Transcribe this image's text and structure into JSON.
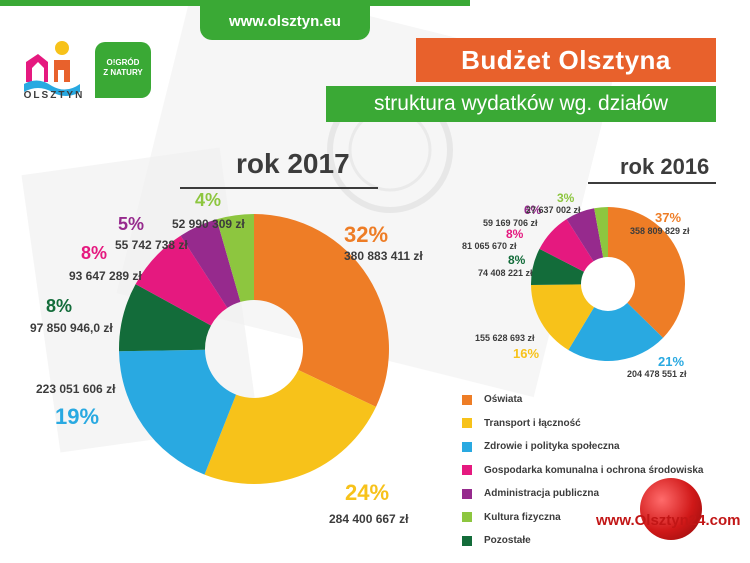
{
  "header": {
    "url": "www.olsztyn.eu",
    "logo_text": "OLSZTYN",
    "ogrod_line1": "O!GRÓD",
    "ogrod_line2": "Z NATURY",
    "title": "Budżet Olsztyna",
    "subtitle": "struktura wydatków wg. działów"
  },
  "watermark": "www.Olsztyn24.com",
  "colors": {
    "Oświata": "#ee7d26",
    "Transport i łączność": "#f7c21a",
    "Zdrowie i polityka społeczna": "#29a9e1",
    "Gospodarka komunalna i ochrona środowiska": "#e5197f",
    "Administracja publiczna": "#962a8d",
    "Kultura fizyczna": "#8dc63f",
    "Pozostałe": "#136c3a"
  },
  "chart_data": [
    {
      "type": "pie",
      "title": "rok 2017",
      "categories": [
        "Oświata",
        "Transport i łączność",
        "Zdrowie i polityka społeczna",
        "Pozostałe",
        "Gospodarka komunalna i ochrona środowiska",
        "Administracja publiczna",
        "Kultura fizyczna"
      ],
      "values": [
        380883411,
        284400667,
        223051606,
        97850946,
        93647289,
        55742738,
        52990309
      ],
      "percent_labels": [
        "32%",
        "24%",
        "19%",
        "8%",
        "8%",
        "5%",
        "4%"
      ],
      "value_labels": [
        "380 883 411 zł",
        "284 400 667 zł",
        "223 051 606 zł",
        "97 850 946,0 zł",
        "93 647 289 zł",
        "55 742 738 zł",
        "52 990 309 zł"
      ]
    },
    {
      "type": "pie",
      "title": "rok 2016",
      "categories": [
        "Oświata",
        "Zdrowie i polityka społeczna",
        "Transport i łączność",
        "Pozostałe",
        "Gospodarka komunalna i ochrona środowiska",
        "Administracja publiczna",
        "Kultura fizyczna"
      ],
      "values": [
        358809829,
        204478551,
        155628693,
        74408221,
        81065670,
        59169706,
        27637002
      ],
      "percent_labels": [
        "37%",
        "21%",
        "16%",
        "8%",
        "8%",
        "6%",
        "3%"
      ],
      "value_labels": [
        "358 809 829 zł",
        "204 478 551 zł",
        "155 628 693 zł",
        "74 408 221 zł",
        "81 065 670 zł",
        "59 169 706 zł",
        "27 637 002 zł"
      ]
    }
  ],
  "legend": [
    "Oświata",
    "Transport i łączność",
    "Zdrowie i polityka społeczna",
    "Gospodarka komunalna i ochrona środowiska",
    "Administracja publiczna",
    "Kultura fizyczna",
    "Pozostałe"
  ]
}
